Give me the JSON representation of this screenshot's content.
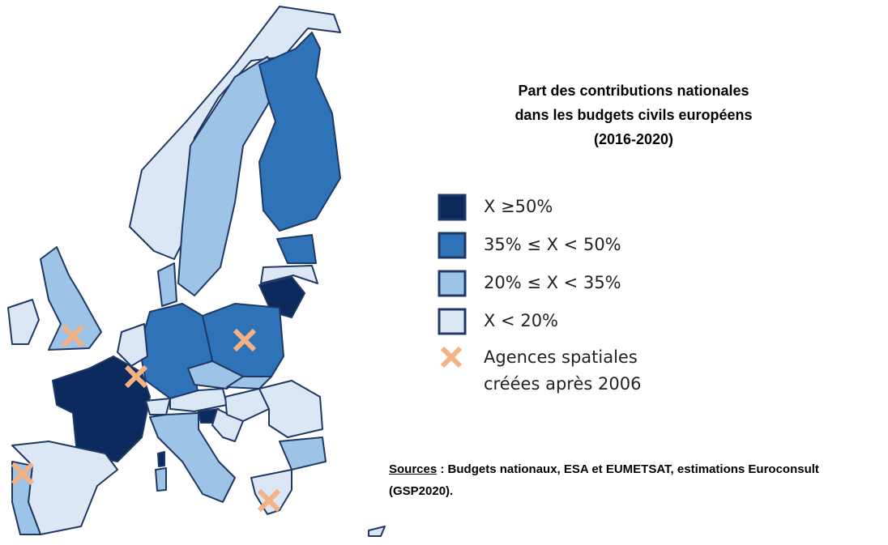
{
  "title": [
    "Part des contributions nationales",
    "dans les budgets civils européens",
    "(2016-2020)"
  ],
  "legend": [
    {
      "label": "X ≥50%",
      "color": "#0c2a5e"
    },
    {
      "label": "35% ≤ X < 50%",
      "color": "#2e72b8"
    },
    {
      "label": "20% ≤ X < 35%",
      "color": "#9dc3e6"
    },
    {
      "label": "X < 20%",
      "color": "#dbe7f5"
    }
  ],
  "agencies": {
    "lines": [
      "Agences spatiales",
      "créées après 2006"
    ],
    "color": "#f4b183"
  },
  "sources": {
    "label": "Sources",
    "text": " : Budgets nationaux, ESA et EUMETSAT, estimations Euroconsult (GSP2020)."
  }
}
